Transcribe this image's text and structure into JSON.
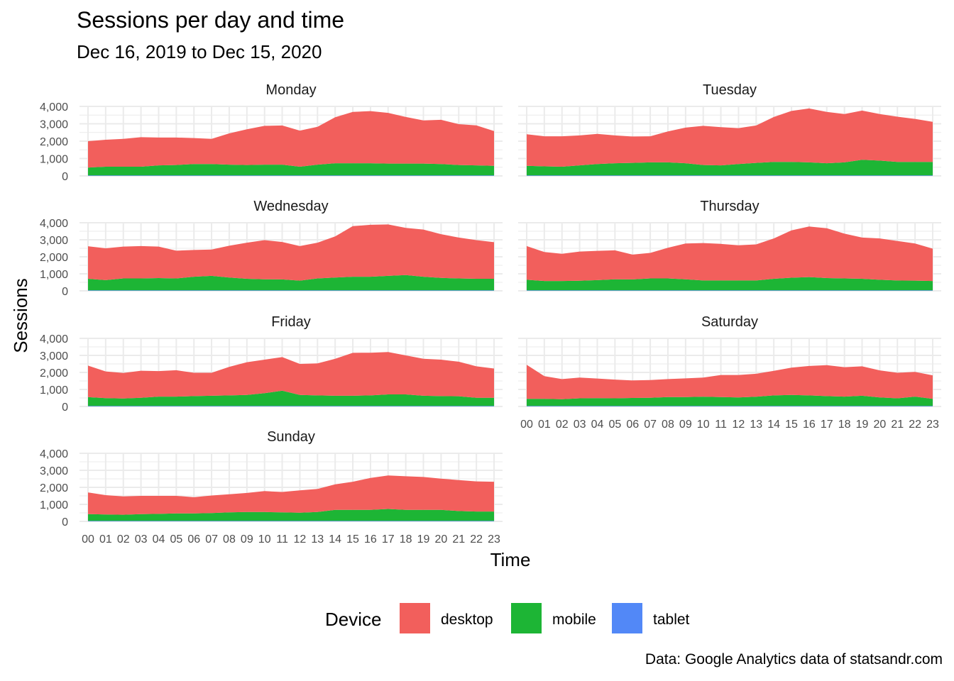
{
  "title": "Sessions per day and time",
  "subtitle": "Dec 16, 2019 to Dec 15, 2020",
  "caption": "Data: Google Analytics data of statsandr.com",
  "colors": {
    "desktop": "#F25F5C",
    "mobile": "#1DB535",
    "tablet": "#5288F7",
    "grid": "#EBEBEB"
  },
  "chart_data": {
    "type": "area",
    "stacked": true,
    "xlabel": "Time",
    "ylabel": "Sessions",
    "x": [
      "00",
      "01",
      "02",
      "03",
      "04",
      "05",
      "06",
      "07",
      "08",
      "09",
      "10",
      "11",
      "12",
      "13",
      "14",
      "15",
      "16",
      "17",
      "18",
      "19",
      "20",
      "21",
      "22",
      "23"
    ],
    "ylim": [
      0,
      4000
    ],
    "yticks": [
      0,
      1000,
      2000,
      3000,
      4000
    ],
    "ytick_labels": [
      "0",
      "1,000",
      "2,000",
      "3,000",
      "4,000"
    ],
    "grid": true,
    "legend": {
      "title": "Device",
      "position": "bottom",
      "entries": [
        "desktop",
        "mobile",
        "tablet"
      ]
    },
    "facets": [
      {
        "name": "Monday",
        "tablet": [
          30,
          30,
          30,
          30,
          30,
          30,
          30,
          30,
          30,
          30,
          30,
          30,
          30,
          30,
          30,
          30,
          30,
          30,
          30,
          30,
          30,
          30,
          30,
          30
        ],
        "mobile": [
          450,
          500,
          500,
          500,
          580,
          600,
          650,
          650,
          620,
          600,
          620,
          620,
          500,
          620,
          700,
          700,
          700,
          680,
          680,
          680,
          650,
          600,
          580,
          550
        ],
        "desktop": [
          1520,
          1550,
          1600,
          1700,
          1600,
          1580,
          1500,
          1450,
          1800,
          2050,
          2230,
          2250,
          2080,
          2180,
          2650,
          2950,
          3000,
          2920,
          2680,
          2480,
          2550,
          2350,
          2300,
          2000
        ]
      },
      {
        "name": "Tuesday",
        "tablet": [
          30,
          30,
          30,
          30,
          30,
          30,
          30,
          30,
          30,
          30,
          30,
          30,
          30,
          30,
          30,
          30,
          30,
          30,
          30,
          30,
          30,
          30,
          30,
          30
        ],
        "mobile": [
          550,
          520,
          500,
          580,
          650,
          700,
          720,
          750,
          750,
          700,
          600,
          580,
          650,
          720,
          780,
          780,
          750,
          700,
          750,
          900,
          850,
          780,
          780,
          780
        ],
        "desktop": [
          1820,
          1730,
          1750,
          1720,
          1740,
          1600,
          1520,
          1500,
          1780,
          2050,
          2250,
          2200,
          2070,
          2150,
          2580,
          2930,
          3100,
          2950,
          2780,
          2830,
          2680,
          2600,
          2470,
          2300
        ]
      },
      {
        "name": "Wednesday",
        "tablet": [
          30,
          30,
          30,
          30,
          30,
          30,
          30,
          30,
          30,
          30,
          30,
          30,
          30,
          30,
          30,
          30,
          30,
          30,
          30,
          30,
          30,
          30,
          30,
          30
        ],
        "mobile": [
          680,
          600,
          700,
          700,
          720,
          700,
          800,
          850,
          750,
          680,
          650,
          640,
          570,
          700,
          750,
          800,
          800,
          850,
          900,
          800,
          730,
          700,
          680,
          680
        ],
        "desktop": [
          1910,
          1870,
          1870,
          1900,
          1850,
          1630,
          1570,
          1550,
          1870,
          2120,
          2300,
          2200,
          2030,
          2100,
          2420,
          2970,
          3050,
          3020,
          2770,
          2770,
          2570,
          2400,
          2270,
          2150
        ]
      },
      {
        "name": "Thursday",
        "tablet": [
          30,
          30,
          30,
          30,
          30,
          30,
          30,
          30,
          30,
          30,
          30,
          30,
          30,
          30,
          30,
          30,
          30,
          30,
          30,
          30,
          30,
          30,
          30,
          30
        ],
        "mobile": [
          620,
          550,
          550,
          560,
          600,
          650,
          640,
          700,
          700,
          650,
          580,
          580,
          580,
          580,
          680,
          740,
          780,
          720,
          700,
          680,
          620,
          580,
          570,
          550
        ],
        "desktop": [
          1980,
          1700,
          1600,
          1720,
          1720,
          1700,
          1460,
          1500,
          1800,
          2100,
          2200,
          2150,
          2070,
          2120,
          2370,
          2780,
          2970,
          2930,
          2630,
          2420,
          2430,
          2320,
          2180,
          1900
        ]
      },
      {
        "name": "Friday",
        "tablet": [
          30,
          30,
          30,
          30,
          30,
          30,
          30,
          30,
          30,
          30,
          30,
          30,
          30,
          30,
          30,
          30,
          30,
          30,
          30,
          30,
          30,
          30,
          30,
          30
        ],
        "mobile": [
          520,
          460,
          440,
          480,
          550,
          550,
          580,
          600,
          620,
          650,
          750,
          900,
          650,
          620,
          600,
          600,
          620,
          680,
          680,
          600,
          580,
          570,
          480,
          480
        ],
        "desktop": [
          1850,
          1570,
          1500,
          1590,
          1500,
          1550,
          1370,
          1350,
          1680,
          1920,
          1970,
          1970,
          1820,
          1880,
          2170,
          2520,
          2510,
          2490,
          2290,
          2170,
          2140,
          2030,
          1850,
          1720
        ]
      },
      {
        "name": "Saturday",
        "tablet": [
          30,
          30,
          30,
          30,
          30,
          30,
          30,
          30,
          30,
          30,
          30,
          30,
          30,
          30,
          30,
          30,
          30,
          30,
          30,
          30,
          30,
          30,
          30,
          30
        ],
        "mobile": [
          420,
          420,
          400,
          450,
          460,
          450,
          470,
          480,
          520,
          520,
          540,
          520,
          500,
          540,
          620,
          650,
          620,
          580,
          550,
          600,
          500,
          450,
          550,
          420
        ],
        "desktop": [
          2000,
          1330,
          1180,
          1220,
          1150,
          1100,
          1030,
          1040,
          1060,
          1100,
          1130,
          1300,
          1320,
          1350,
          1440,
          1600,
          1730,
          1820,
          1730,
          1730,
          1590,
          1500,
          1450,
          1380
        ]
      },
      {
        "name": "Sunday",
        "tablet": [
          30,
          30,
          30,
          30,
          30,
          30,
          30,
          30,
          30,
          30,
          30,
          30,
          30,
          30,
          30,
          30,
          30,
          30,
          30,
          30,
          30,
          30,
          30,
          30
        ],
        "mobile": [
          400,
          380,
          360,
          400,
          410,
          440,
          440,
          460,
          500,
          520,
          520,
          500,
          480,
          520,
          650,
          650,
          650,
          700,
          650,
          650,
          650,
          580,
          550,
          550
        ],
        "desktop": [
          1270,
          1130,
          1080,
          1070,
          1060,
          1030,
          950,
          1030,
          1060,
          1120,
          1230,
          1200,
          1310,
          1360,
          1500,
          1650,
          1870,
          1970,
          1970,
          1930,
          1830,
          1820,
          1770,
          1750
        ]
      }
    ]
  }
}
